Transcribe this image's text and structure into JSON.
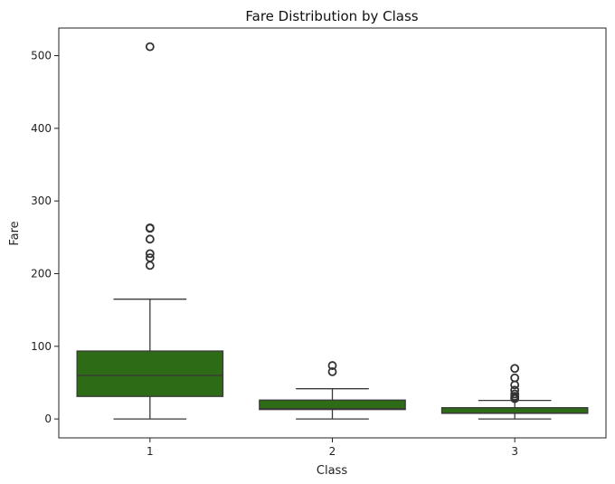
{
  "chart_data": {
    "type": "box",
    "title": "Fare Distribution by Class",
    "xlabel": "Class",
    "ylabel": "Fare",
    "categories": [
      "1",
      "2",
      "3"
    ],
    "ylim": [
      -26,
      538
    ],
    "yticks": [
      0,
      100,
      200,
      300,
      400,
      500
    ],
    "grid": false,
    "box_color": "#2e6b17",
    "edge_color": "#3a3a3a",
    "boxes": [
      {
        "category": "1",
        "whisker_low": 0,
        "q1": 31,
        "median": 60,
        "q3": 93.5,
        "whisker_high": 164.9,
        "outliers": [
          211.3,
          221.8,
          227.5,
          247.5,
          262.4,
          263,
          512.3
        ]
      },
      {
        "category": "2",
        "whisker_low": 0,
        "q1": 13,
        "median": 14.25,
        "q3": 26,
        "whisker_high": 41.6,
        "outliers": [
          65,
          73.5
        ]
      },
      {
        "category": "3",
        "whisker_low": 0,
        "q1": 7.75,
        "median": 8.05,
        "q3": 15.5,
        "whisker_high": 25.5,
        "outliers": [
          27.9,
          29.1,
          31.3,
          34.4,
          39.7,
          46.9,
          56.5,
          69.55
        ]
      }
    ]
  }
}
